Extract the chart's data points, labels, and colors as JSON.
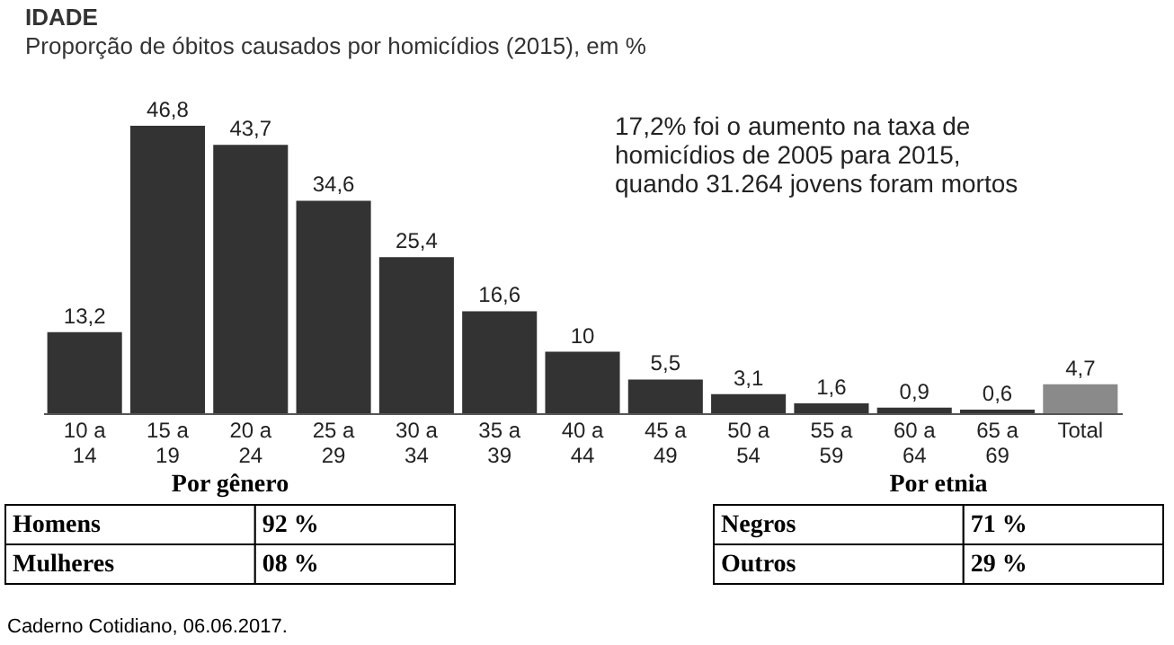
{
  "chart_data": [
    {
      "type": "bar",
      "title": "IDADE",
      "subtitle": "Proporção de óbitos causados por homicídios (2015), em %",
      "categories": [
        "10 a\n14",
        "15 a\n19",
        "20 a\n24",
        "25 a\n29",
        "30 a\n34",
        "35 a\n39",
        "40 a\n44",
        "45 a\n49",
        "50 a\n54",
        "55 a\n59",
        "60 a\n64",
        "65 a\n69",
        "Total"
      ],
      "values": [
        13.2,
        46.8,
        43.7,
        34.6,
        25.4,
        16.6,
        10,
        5.5,
        3.1,
        1.6,
        0.9,
        0.6,
        4.7
      ],
      "value_labels": [
        "13,2",
        "46,8",
        "43,7",
        "34,6",
        "25,4",
        "16,6",
        "10",
        "5,5",
        "3,1",
        "1,6",
        "0,9",
        "0,6",
        "4,7"
      ],
      "colors": [
        "#333333",
        "#333333",
        "#333333",
        "#333333",
        "#333333",
        "#333333",
        "#333333",
        "#333333",
        "#333333",
        "#333333",
        "#333333",
        "#333333",
        "#8a8a8a"
      ],
      "tick_labels": "x",
      "annotations": [
        "17,2% foi o aumento na taxa de\nhomicídios de 2005 para 2015,\nquando 31.264 jovens foram mortos",
        "Caderno Cotidiano, 06.06.2017."
      ]
    },
    {
      "type": "other",
      "title": "Por gênero",
      "categories": [
        "Homens",
        "Mulheres"
      ],
      "value_labels": [
        "92 %",
        "08 %"
      ]
    },
    {
      "type": "other",
      "title": "Por etnia",
      "categories": [
        "Negros",
        "Outros"
      ],
      "value_labels": [
        "71 %",
        "29 %"
      ]
    }
  ]
}
